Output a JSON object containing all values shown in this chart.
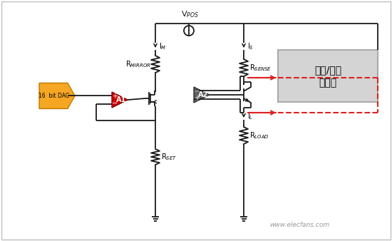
{
  "bg_color": "#ffffff",
  "border_color": "#c0c0c0",
  "vpos_label": "V$_{POS}$",
  "im_label": "I$_M$",
  "is_label": "I$_S$",
  "il_label": "I$_L$",
  "rmirror_label": "R$_{MIRROR}$",
  "rsense_label": "R$_{SENSE}$",
  "rset_label": "R$_{SET}$",
  "rload_label": "R$_{LOAD}$",
  "dac_label": "16  bit DAC",
  "a1_label": "A1",
  "a2_label": "A2",
  "box_label_line1": "降压/升压",
  "box_label_line2": "转换器",
  "watermark": "www.elecfans.com",
  "dac_color": "#f5a623",
  "a1_color": "#cc0000",
  "a2_color": "#606060",
  "box_color": "#d4d4d4",
  "dashed_color": "#dd2222",
  "wire_color": "#1a1a1a"
}
